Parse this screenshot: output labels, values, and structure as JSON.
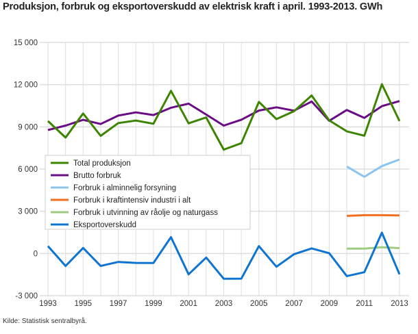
{
  "chart_data": {
    "type": "line",
    "title": "Produksjon, forbruk og eksportoverskudd av elektrisk kraft i april. 1993-2013. GWh",
    "xlabel": "",
    "ylabel": "",
    "x": [
      1993,
      1994,
      1995,
      1996,
      1997,
      1998,
      1999,
      2000,
      2001,
      2002,
      2003,
      2004,
      2005,
      2006,
      2007,
      2008,
      2009,
      2010,
      2011,
      2012,
      2013
    ],
    "x_tick_labels": [
      "1993",
      "1995",
      "1997",
      "1999",
      "2001",
      "2003",
      "2005",
      "2007",
      "2009",
      "2011",
      "2013"
    ],
    "ylim": [
      -3000,
      15000
    ],
    "y_ticks": [
      -3000,
      0,
      3000,
      6000,
      9000,
      12000,
      15000
    ],
    "y_tick_labels": [
      "-3 000",
      "0",
      "3 000",
      "6 000",
      "9 000",
      "12 000",
      "15 000"
    ],
    "grid": true,
    "legend_placement": "center-left",
    "series": [
      {
        "name": "Total produksjon",
        "color": "#3d8500",
        "values": [
          9410,
          8240,
          9950,
          8360,
          9270,
          9450,
          9220,
          11560,
          9250,
          9670,
          7380,
          7840,
          10770,
          9550,
          10110,
          11230,
          9460,
          8680,
          8370,
          12030,
          9410
        ]
      },
      {
        "name": "Brutto forbruk",
        "color": "#6a0c85",
        "values": [
          8780,
          9090,
          9500,
          9200,
          9800,
          10030,
          9840,
          10360,
          10650,
          9870,
          9090,
          9510,
          10160,
          10390,
          10150,
          10800,
          9430,
          10200,
          9640,
          10470,
          10830
        ]
      },
      {
        "name": "Forbruk i alminnelig forsyning",
        "color": "#8dc4ee",
        "values": [
          null,
          null,
          null,
          null,
          null,
          null,
          null,
          null,
          null,
          null,
          null,
          null,
          null,
          null,
          null,
          null,
          null,
          6180,
          5450,
          6210,
          6680
        ]
      },
      {
        "name": "Forbruk i kraftintensiv industri i alt",
        "color": "#f26f21",
        "values": [
          null,
          null,
          null,
          null,
          null,
          null,
          null,
          null,
          null,
          null,
          null,
          null,
          null,
          null,
          null,
          null,
          null,
          2670,
          2720,
          2720,
          2700
        ]
      },
      {
        "name": "Forbruk i utvinning av råolje og naturgass",
        "color": "#9fcb7f",
        "values": [
          null,
          null,
          null,
          null,
          null,
          null,
          null,
          null,
          null,
          null,
          null,
          null,
          null,
          null,
          null,
          null,
          null,
          340,
          340,
          440,
          380
        ]
      },
      {
        "name": "Eksportoverskudd",
        "color": "#0d74d1",
        "values": [
          520,
          -890,
          390,
          -890,
          -600,
          -670,
          -680,
          1160,
          -1480,
          -290,
          -1800,
          -1790,
          520,
          -940,
          -50,
          360,
          20,
          -1610,
          -1330,
          1480,
          -1480
        ]
      }
    ]
  },
  "source": "Kilde: Statistisk sentralbyrå."
}
